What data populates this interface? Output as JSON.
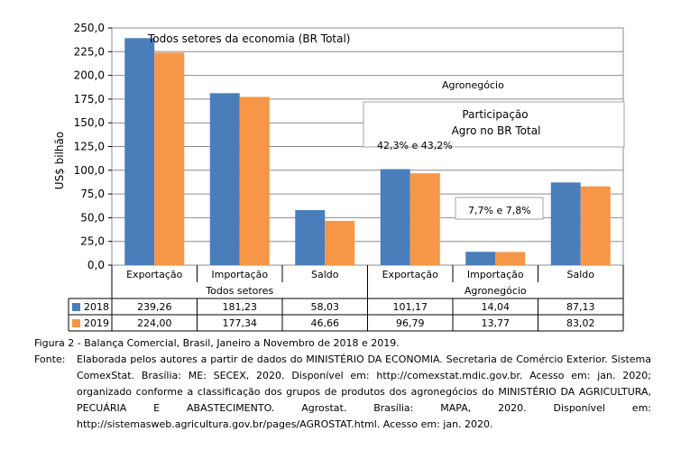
{
  "chart_data": {
    "type": "bar",
    "ylabel": "US$ bilhão",
    "ylim": [
      0,
      250
    ],
    "yticks": [
      "0,0",
      "25,0",
      "50,0",
      "75,0",
      "100,0",
      "125,0",
      "150,0",
      "175,0",
      "200,0",
      "225,0",
      "250,0"
    ],
    "categories": [
      "Exportação",
      "Importação",
      "Saldo",
      "Exportação",
      "Importação",
      "Saldo"
    ],
    "groups": [
      "Todos setores",
      "Agronegócio"
    ],
    "series": [
      {
        "name": "2018",
        "values": [
          239.26,
          181.23,
          58.03,
          101.17,
          14.04,
          87.13
        ],
        "labels": [
          "239,26",
          "181,23",
          "58,03",
          "101,17",
          "14,04",
          "87,13"
        ]
      },
      {
        "name": "2019",
        "values": [
          224.0,
          177.34,
          46.66,
          96.79,
          13.77,
          83.02
        ],
        "labels": [
          "224,00",
          "177,34",
          "46,66",
          "96,79",
          "13,77",
          "83,02"
        ]
      }
    ],
    "grid": true,
    "legend": "bottom-left (in data table)",
    "annotations": {
      "total": "Todos setores da economia (BR Total)",
      "agro": "Agronegócio",
      "participation_title_1": "Participação",
      "participation_title_2": "Agro no BR  Total",
      "participation_exports": "42,3%  e 43,2%",
      "participation_imports": "7,7% e 7,8%"
    }
  },
  "colors": {
    "s2018": "#4a7ebb",
    "s2019": "#f79646"
  },
  "caption": "Figura 2 - Balança Comercial, Brasil, Janeiro a Novembro de 2018 e 2019.",
  "source_label": "Fonte:",
  "source_text": "Elaborada pelos autores a partir de dados do MINISTÉRIO DA ECONOMIA. Secretaria de Comércio Exterior. Sistema ComexStat. Brasília: ME: SECEX, 2020. Disponível em: http://comexstat.mdic.gov.br. Acesso em: jan. 2020; organizado conforme a classificação dos grupos de produtos dos agronegócios do MINISTÉRIO DA AGRICULTURA, PECUÁRIA E ABASTECIMENTO. Agrostat. Brasília: MAPA, 2020. Disponível em: http://sistemasweb.agricultura.gov.br/pages/AGROSTAT.html. Acesso em: jan. 2020."
}
